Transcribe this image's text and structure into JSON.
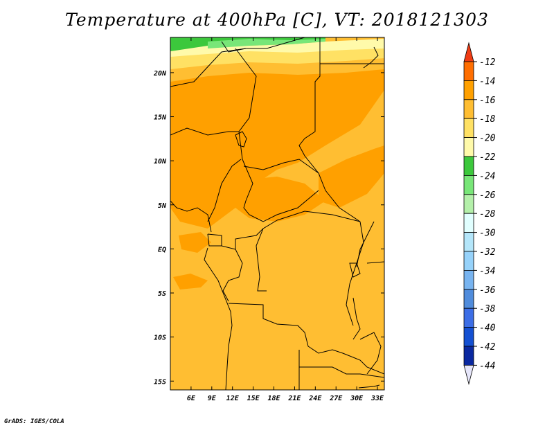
{
  "title": "Temperature at 400hPa [C], VT: 2018121303",
  "credit": "GrADS: IGES/COLA",
  "map": {
    "lon_range": [
      3,
      34
    ],
    "lat_range": [
      -16,
      24
    ],
    "lon_ticks": [
      "6E",
      "9E",
      "12E",
      "15E",
      "18E",
      "21E",
      "24E",
      "27E",
      "30E",
      "33E"
    ],
    "lat_ticks": [
      "20N",
      "15N",
      "10N",
      "5N",
      "EQ",
      "5S",
      "10S",
      "15S"
    ]
  },
  "colorbar": {
    "labels": [
      "-12",
      "-14",
      "-16",
      "-18",
      "-20",
      "-22",
      "-24",
      "-26",
      "-28",
      "-30",
      "-32",
      "-34",
      "-36",
      "-38",
      "-40",
      "-42",
      "-44"
    ],
    "colors": [
      "#f03c14",
      "#ff6e00",
      "#ffa000",
      "#ffbe32",
      "#ffe164",
      "#fffaaa",
      "#3cc83c",
      "#78e678",
      "#b4f0aa",
      "#e1ffff",
      "#b4e6fa",
      "#96d2fa",
      "#78b4f0",
      "#508cdc",
      "#3c6ee6",
      "#1450d2",
      "#0a28a0",
      "#000a64",
      "#e6e6fa"
    ]
  }
}
